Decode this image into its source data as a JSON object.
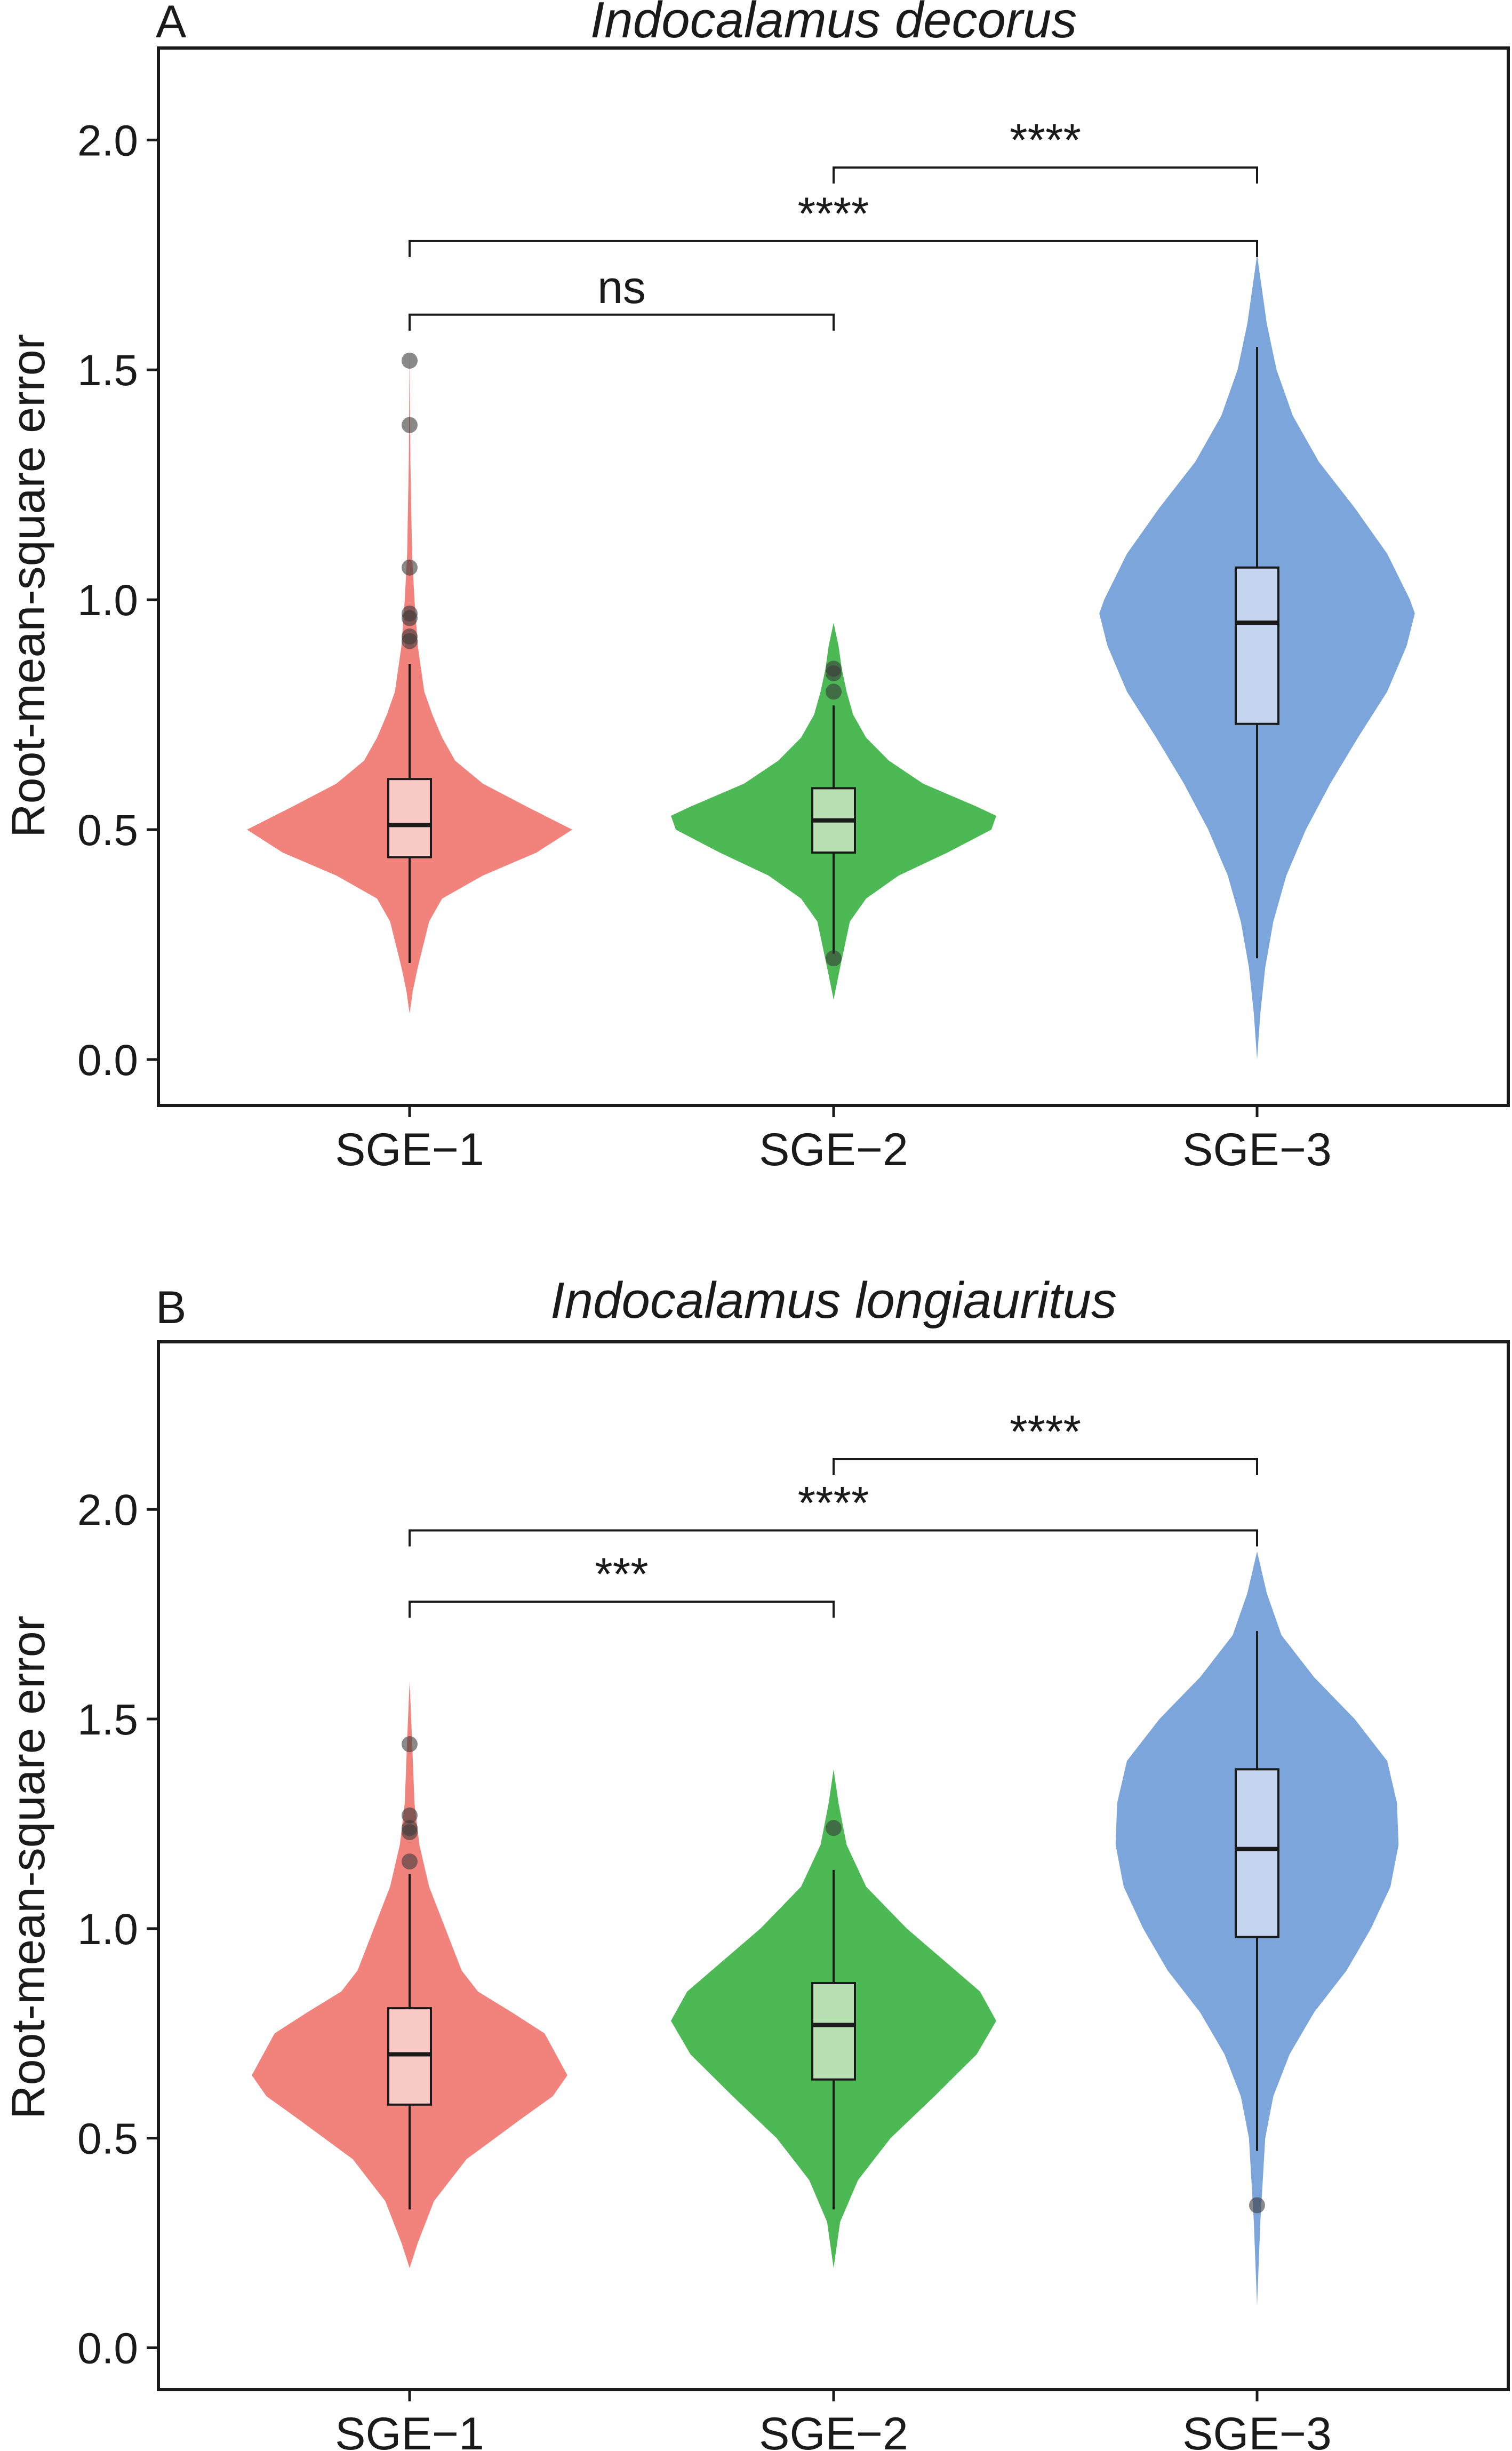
{
  "chart_data": [
    {
      "panel": "A",
      "type": "violin",
      "title": "Indocalamus decorus",
      "xlabel": "",
      "ylabel": "Root-mean-square error",
      "ylim": [
        -0.1,
        2.2
      ],
      "yticks": [
        "0.0",
        "0.5",
        "1.0",
        "1.5",
        "2.0"
      ],
      "ytick_values": [
        0.0,
        0.5,
        1.0,
        1.5,
        2.0
      ],
      "categories": [
        "SGE−1",
        "SGE−2",
        "SGE−3"
      ],
      "colors": {
        "violin": [
          "#F2827C",
          "#4CB954",
          "#7BA5DB"
        ],
        "box": [
          "#F9C9C5",
          "#B8E0B3",
          "#C5D5EF"
        ]
      },
      "series": [
        {
          "name": "SGE-1",
          "box": {
            "whisker_low": 0.21,
            "q1": 0.44,
            "median": 0.51,
            "q3": 0.61,
            "whisker_high": 0.86
          },
          "outliers": [
            1.52,
            1.38,
            1.07,
            0.97,
            0.96,
            0.92,
            0.91
          ],
          "violin_range": [
            0.1,
            1.55
          ],
          "violin_profile": [
            [
              0.1,
              0.0
            ],
            [
              0.15,
              0.02
            ],
            [
              0.2,
              0.05
            ],
            [
              0.3,
              0.12
            ],
            [
              0.35,
              0.2
            ],
            [
              0.4,
              0.45
            ],
            [
              0.45,
              0.78
            ],
            [
              0.5,
              1.0
            ],
            [
              0.55,
              0.72
            ],
            [
              0.6,
              0.45
            ],
            [
              0.65,
              0.28
            ],
            [
              0.7,
              0.2
            ],
            [
              0.75,
              0.14
            ],
            [
              0.8,
              0.09
            ],
            [
              0.9,
              0.05
            ],
            [
              1.0,
              0.03
            ],
            [
              1.1,
              0.015
            ],
            [
              1.3,
              0.005
            ],
            [
              1.55,
              0.0
            ]
          ]
        },
        {
          "name": "SGE-2",
          "box": {
            "whisker_low": 0.23,
            "q1": 0.45,
            "median": 0.52,
            "q3": 0.59,
            "whisker_high": 0.77
          },
          "outliers": [
            0.85,
            0.84,
            0.8,
            0.22
          ],
          "violin_range": [
            0.13,
            0.95
          ],
          "violin_profile": [
            [
              0.13,
              0.0
            ],
            [
              0.2,
              0.04
            ],
            [
              0.3,
              0.1
            ],
            [
              0.35,
              0.2
            ],
            [
              0.4,
              0.4
            ],
            [
              0.45,
              0.7
            ],
            [
              0.5,
              0.97
            ],
            [
              0.53,
              1.0
            ],
            [
              0.55,
              0.88
            ],
            [
              0.6,
              0.55
            ],
            [
              0.65,
              0.34
            ],
            [
              0.7,
              0.2
            ],
            [
              0.75,
              0.12
            ],
            [
              0.8,
              0.08
            ],
            [
              0.85,
              0.05
            ],
            [
              0.9,
              0.03
            ],
            [
              0.95,
              0.0
            ]
          ]
        },
        {
          "name": "SGE-3",
          "box": {
            "whisker_low": 0.22,
            "q1": 0.73,
            "median": 0.95,
            "q3": 1.07,
            "whisker_high": 1.55
          },
          "outliers": [],
          "violin_range": [
            0.0,
            1.75
          ],
          "violin_profile": [
            [
              0.0,
              0.0
            ],
            [
              0.1,
              0.02
            ],
            [
              0.2,
              0.05
            ],
            [
              0.3,
              0.1
            ],
            [
              0.4,
              0.18
            ],
            [
              0.5,
              0.3
            ],
            [
              0.6,
              0.45
            ],
            [
              0.7,
              0.62
            ],
            [
              0.8,
              0.8
            ],
            [
              0.9,
              0.92
            ],
            [
              0.97,
              0.97
            ],
            [
              1.0,
              0.94
            ],
            [
              1.1,
              0.8
            ],
            [
              1.2,
              0.6
            ],
            [
              1.3,
              0.38
            ],
            [
              1.4,
              0.22
            ],
            [
              1.5,
              0.12
            ],
            [
              1.6,
              0.06
            ],
            [
              1.7,
              0.02
            ],
            [
              1.75,
              0.0
            ]
          ]
        }
      ],
      "comparisons": [
        {
          "from": 0,
          "to": 1,
          "label": "ns",
          "y": 1.62
        },
        {
          "from": 0,
          "to": 2,
          "label": "****",
          "y": 1.78
        },
        {
          "from": 1,
          "to": 2,
          "label": "****",
          "y": 1.94
        }
      ]
    },
    {
      "panel": "B",
      "type": "violin",
      "title": "Indocalamus longiauritus",
      "xlabel": "",
      "ylabel": "Root-mean-square error",
      "ylim": [
        -0.1,
        2.4
      ],
      "yticks": [
        "0.0",
        "0.5",
        "1.0",
        "1.5",
        "2.0"
      ],
      "ytick_values": [
        0.0,
        0.5,
        1.0,
        1.5,
        2.0
      ],
      "categories": [
        "SGE−1",
        "SGE−2",
        "SGE−3"
      ],
      "colors": {
        "violin": [
          "#F2827C",
          "#4CB954",
          "#7BA5DB"
        ],
        "box": [
          "#F9C9C5",
          "#B8E0B3",
          "#C5D5EF"
        ]
      },
      "series": [
        {
          "name": "SGE-1",
          "box": {
            "whisker_low": 0.33,
            "q1": 0.58,
            "median": 0.7,
            "q3": 0.81,
            "whisker_high": 1.13
          },
          "outliers": [
            1.44,
            1.27,
            1.24,
            1.23,
            1.16
          ],
          "violin_range": [
            0.19,
            1.59
          ],
          "violin_profile": [
            [
              0.19,
              0.0
            ],
            [
              0.25,
              0.05
            ],
            [
              0.35,
              0.15
            ],
            [
              0.45,
              0.35
            ],
            [
              0.55,
              0.7
            ],
            [
              0.6,
              0.88
            ],
            [
              0.65,
              0.97
            ],
            [
              0.7,
              0.9
            ],
            [
              0.75,
              0.83
            ],
            [
              0.8,
              0.63
            ],
            [
              0.85,
              0.42
            ],
            [
              0.9,
              0.32
            ],
            [
              1.0,
              0.22
            ],
            [
              1.1,
              0.12
            ],
            [
              1.2,
              0.06
            ],
            [
              1.3,
              0.03
            ],
            [
              1.45,
              0.015
            ],
            [
              1.59,
              0.0
            ]
          ]
        },
        {
          "name": "SGE-2",
          "box": {
            "whisker_low": 0.33,
            "q1": 0.64,
            "median": 0.77,
            "q3": 0.87,
            "whisker_high": 1.14
          },
          "outliers": [
            1.24
          ],
          "violin_range": [
            0.19,
            1.38
          ],
          "violin_profile": [
            [
              0.19,
              0.0
            ],
            [
              0.3,
              0.04
            ],
            [
              0.4,
              0.15
            ],
            [
              0.5,
              0.35
            ],
            [
              0.6,
              0.62
            ],
            [
              0.7,
              0.88
            ],
            [
              0.78,
              1.0
            ],
            [
              0.85,
              0.9
            ],
            [
              0.9,
              0.75
            ],
            [
              1.0,
              0.45
            ],
            [
              1.1,
              0.2
            ],
            [
              1.2,
              0.08
            ],
            [
              1.3,
              0.03
            ],
            [
              1.38,
              0.0
            ]
          ]
        },
        {
          "name": "SGE-3",
          "box": {
            "whisker_low": 0.47,
            "q1": 0.98,
            "median": 1.19,
            "q3": 1.38,
            "whisker_high": 1.71
          },
          "outliers": [
            0.34
          ],
          "violin_range": [
            0.1,
            1.9
          ],
          "violin_profile": [
            [
              0.1,
              0.0
            ],
            [
              0.3,
              0.02
            ],
            [
              0.5,
              0.05
            ],
            [
              0.6,
              0.1
            ],
            [
              0.7,
              0.2
            ],
            [
              0.8,
              0.35
            ],
            [
              0.9,
              0.55
            ],
            [
              1.0,
              0.7
            ],
            [
              1.1,
              0.82
            ],
            [
              1.2,
              0.87
            ],
            [
              1.3,
              0.86
            ],
            [
              1.4,
              0.8
            ],
            [
              1.5,
              0.6
            ],
            [
              1.6,
              0.35
            ],
            [
              1.7,
              0.15
            ],
            [
              1.8,
              0.06
            ],
            [
              1.9,
              0.0
            ]
          ]
        }
      ],
      "comparisons": [
        {
          "from": 0,
          "to": 1,
          "label": "***",
          "y": 1.78
        },
        {
          "from": 0,
          "to": 2,
          "label": "****",
          "y": 1.95
        },
        {
          "from": 1,
          "to": 2,
          "label": "****",
          "y": 2.12
        }
      ]
    }
  ]
}
